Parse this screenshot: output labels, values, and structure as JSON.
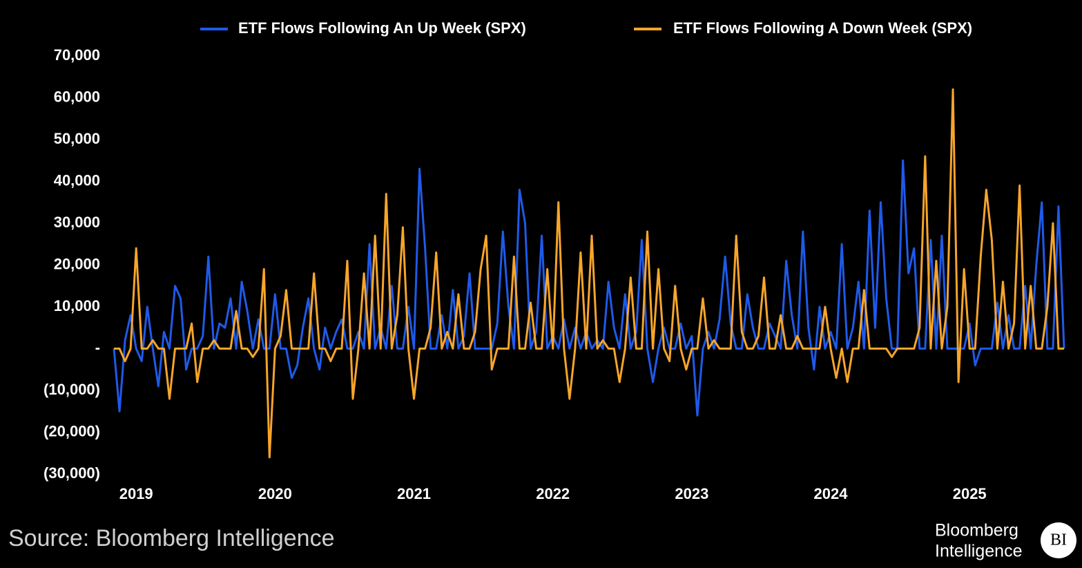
{
  "chart_data": {
    "type": "line",
    "source": "Source: Bloomberg Intelligence",
    "brand_lines": [
      "Bloomberg",
      "Intelligence"
    ],
    "brand_badge": "BI",
    "x": [
      2018.84,
      2018.88,
      2018.92,
      2018.96,
      2019,
      2019.04,
      2019.08,
      2019.12,
      2019.16,
      2019.2,
      2019.24,
      2019.28,
      2019.32,
      2019.36,
      2019.4,
      2019.44,
      2019.48,
      2019.52,
      2019.56,
      2019.6,
      2019.64,
      2019.68,
      2019.72,
      2019.76,
      2019.8,
      2019.84,
      2019.88,
      2019.92,
      2019.96,
      2020,
      2020.04,
      2020.08,
      2020.12,
      2020.16,
      2020.2,
      2020.24,
      2020.28,
      2020.32,
      2020.36,
      2020.4,
      2020.44,
      2020.48,
      2020.52,
      2020.56,
      2020.6,
      2020.64,
      2020.68,
      2020.72,
      2020.76,
      2020.8,
      2020.84,
      2020.88,
      2020.92,
      2020.96,
      2021,
      2021.04,
      2021.08,
      2021.12,
      2021.16,
      2021.2,
      2021.24,
      2021.28,
      2021.32,
      2021.36,
      2021.4,
      2021.44,
      2021.48,
      2021.52,
      2021.56,
      2021.6,
      2021.64,
      2021.68,
      2021.72,
      2021.76,
      2021.8,
      2021.84,
      2021.88,
      2021.92,
      2021.96,
      2022,
      2022.04,
      2022.08,
      2022.12,
      2022.16,
      2022.2,
      2022.24,
      2022.28,
      2022.32,
      2022.36,
      2022.4,
      2022.44,
      2022.48,
      2022.52,
      2022.56,
      2022.6,
      2022.64,
      2022.68,
      2022.72,
      2022.76,
      2022.8,
      2022.84,
      2022.88,
      2022.92,
      2022.96,
      2023,
      2023.04,
      2023.08,
      2023.12,
      2023.16,
      2023.2,
      2023.24,
      2023.28,
      2023.32,
      2023.36,
      2023.4,
      2023.44,
      2023.48,
      2023.52,
      2023.56,
      2023.6,
      2023.64,
      2023.68,
      2023.72,
      2023.76,
      2023.8,
      2023.84,
      2023.88,
      2023.92,
      2023.96,
      2024,
      2024.04,
      2024.08,
      2024.12,
      2024.16,
      2024.2,
      2024.24,
      2024.28,
      2024.32,
      2024.36,
      2024.4,
      2024.44,
      2024.48,
      2024.52,
      2024.56,
      2024.6,
      2024.64,
      2024.68,
      2024.72,
      2024.76,
      2024.8,
      2024.84,
      2024.88,
      2024.92,
      2024.96,
      2025,
      2025.04,
      2025.08,
      2025.12,
      2025.16,
      2025.2,
      2025.24,
      2025.28,
      2025.32,
      2025.36,
      2025.4,
      2025.44,
      2025.48,
      2025.52,
      2025.56,
      2025.6,
      2025.64,
      2025.68
    ],
    "series": [
      {
        "name": "ETF Flows Following An Up Week (SPX)",
        "color": "#1f5ae8",
        "values": [
          0,
          -15000,
          2000,
          8000,
          0,
          -3000,
          10000,
          0,
          -9000,
          4000,
          0,
          15000,
          12000,
          -5000,
          0,
          0,
          3000,
          22000,
          0,
          6000,
          5000,
          12000,
          0,
          16000,
          9000,
          0,
          7000,
          0,
          0,
          13000,
          0,
          0,
          -7000,
          -4000,
          5000,
          12000,
          0,
          -5000,
          5000,
          0,
          4000,
          7000,
          0,
          0,
          4000,
          0,
          25000,
          0,
          5000,
          0,
          15000,
          0,
          0,
          10000,
          0,
          43000,
          24000,
          0,
          0,
          8000,
          0,
          14000,
          0,
          3000,
          18000,
          0,
          0,
          0,
          0,
          6000,
          28000,
          10000,
          0,
          38000,
          30000,
          0,
          4000,
          27000,
          0,
          3000,
          0,
          7000,
          0,
          5000,
          0,
          4000,
          0,
          2000,
          0,
          16000,
          5000,
          0,
          13000,
          0,
          4000,
          26000,
          0,
          -8000,
          0,
          5000,
          0,
          0,
          6000,
          0,
          3000,
          -16000,
          0,
          4000,
          0,
          7000,
          22000,
          6000,
          0,
          0,
          13000,
          5000,
          0,
          0,
          6000,
          3000,
          0,
          21000,
          8000,
          0,
          28000,
          5000,
          -5000,
          10000,
          0,
          4000,
          0,
          25000,
          0,
          5000,
          16000,
          0,
          33000,
          5000,
          35000,
          12000,
          0,
          0,
          45000,
          18000,
          24000,
          0,
          0,
          26000,
          0,
          27000,
          0,
          0,
          0,
          0,
          6000,
          -4000,
          0,
          0,
          0,
          11000,
          0,
          8000,
          0,
          0,
          15000,
          0,
          20000,
          35000,
          0,
          0,
          34000,
          0
        ]
      },
      {
        "name": "ETF Flows Following A Down Week (SPX)",
        "color": "#f7a52b",
        "values": [
          0,
          0,
          -3000,
          0,
          24000,
          0,
          0,
          2000,
          0,
          0,
          -12000,
          0,
          0,
          0,
          6000,
          -8000,
          0,
          0,
          2000,
          0,
          0,
          0,
          9000,
          0,
          0,
          -2000,
          0,
          19000,
          -26000,
          0,
          3000,
          14000,
          0,
          0,
          0,
          0,
          18000,
          0,
          0,
          -3000,
          0,
          0,
          21000,
          -12000,
          0,
          18000,
          0,
          27000,
          0,
          37000,
          0,
          8000,
          29000,
          0,
          -12000,
          0,
          0,
          5000,
          23000,
          0,
          4000,
          0,
          13000,
          0,
          0,
          4000,
          19000,
          27000,
          -5000,
          0,
          0,
          0,
          22000,
          0,
          0,
          11000,
          0,
          0,
          19000,
          0,
          35000,
          0,
          -12000,
          0,
          23000,
          0,
          27000,
          0,
          2000,
          0,
          0,
          -8000,
          0,
          17000,
          0,
          0,
          28000,
          0,
          19000,
          0,
          -3000,
          15000,
          0,
          -5000,
          0,
          0,
          12000,
          0,
          2000,
          0,
          0,
          0,
          27000,
          4000,
          0,
          0,
          3000,
          17000,
          0,
          0,
          8000,
          0,
          0,
          3000,
          0,
          0,
          0,
          0,
          10000,
          0,
          -7000,
          0,
          -8000,
          0,
          0,
          14000,
          0,
          0,
          0,
          0,
          -2000,
          0,
          0,
          0,
          0,
          5000,
          46000,
          0,
          21000,
          0,
          10000,
          62000,
          -8000,
          19000,
          0,
          0,
          22000,
          38000,
          26000,
          0,
          16000,
          0,
          6000,
          39000,
          0,
          15000,
          0,
          0,
          10000,
          30000,
          0,
          0
        ]
      }
    ],
    "xlim": [
      2018.84,
      2025.68
    ],
    "xticks": [
      2019,
      2020,
      2021,
      2022,
      2023,
      2024,
      2025
    ],
    "ylim": [
      -30000,
      70000
    ],
    "yticks": [
      {
        "value": -30000,
        "label": "(30,000)"
      },
      {
        "value": -20000,
        "label": "(20,000)"
      },
      {
        "value": -10000,
        "label": "(10,000)"
      },
      {
        "value": 0,
        "label": "-"
      },
      {
        "value": 10000,
        "label": "10,000"
      },
      {
        "value": 20000,
        "label": "20,000"
      },
      {
        "value": 30000,
        "label": "30,000"
      },
      {
        "value": 40000,
        "label": "40,000"
      },
      {
        "value": 50000,
        "label": "50,000"
      },
      {
        "value": 60000,
        "label": "60,000"
      },
      {
        "value": 70000,
        "label": "70,000"
      }
    ],
    "grid": false
  }
}
